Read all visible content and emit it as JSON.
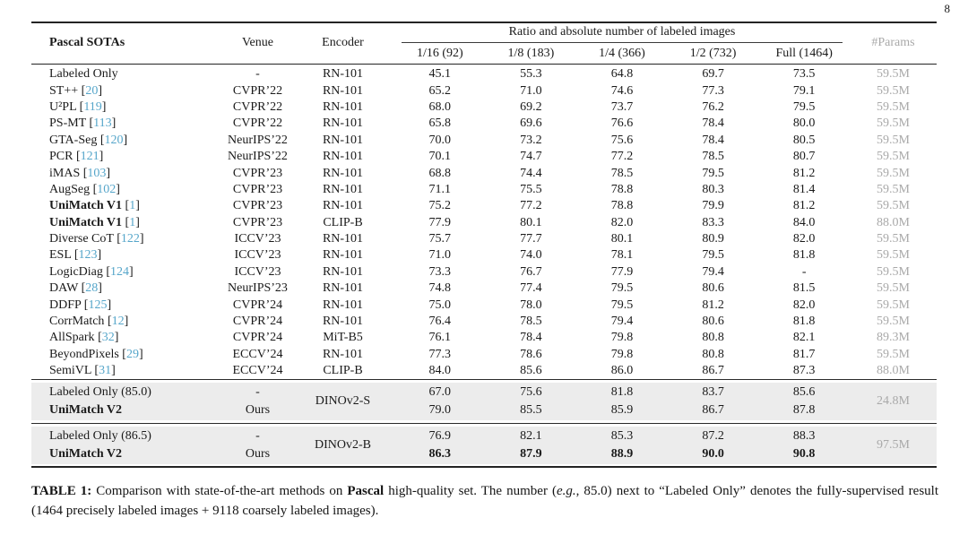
{
  "page": {
    "number": "8"
  },
  "colors": {
    "citation_blue": "#56a6ca",
    "params_gray": "#a9a9a9",
    "highlight_bg": "#ececec"
  },
  "table": {
    "header": {
      "col_method": "Pascal SOTAs",
      "col_venue": "Venue",
      "col_encoder": "Encoder",
      "group_title": "Ratio and absolute number of labeled images",
      "subcols": [
        "1/16 (92)",
        "1/8 (183)",
        "1/4 (366)",
        "1/2 (732)",
        "Full (1464)"
      ],
      "col_params": "#Params"
    },
    "rows": [
      {
        "method": "Labeled Only",
        "cite": "",
        "bold": false,
        "venue": "-",
        "encoder": "RN-101",
        "values": [
          "45.1",
          "55.3",
          "64.8",
          "69.7",
          "73.5"
        ],
        "params": "59.5M"
      },
      {
        "method": "ST++",
        "cite": "20",
        "bold": false,
        "venue": "CVPR’22",
        "encoder": "RN-101",
        "values": [
          "65.2",
          "71.0",
          "74.6",
          "77.3",
          "79.1"
        ],
        "params": "59.5M"
      },
      {
        "method": "U²PL",
        "cite": "119",
        "bold": false,
        "venue": "CVPR’22",
        "encoder": "RN-101",
        "values": [
          "68.0",
          "69.2",
          "73.7",
          "76.2",
          "79.5"
        ],
        "params": "59.5M"
      },
      {
        "method": "PS-MT",
        "cite": "113",
        "bold": false,
        "venue": "CVPR’22",
        "encoder": "RN-101",
        "values": [
          "65.8",
          "69.6",
          "76.6",
          "78.4",
          "80.0"
        ],
        "params": "59.5M"
      },
      {
        "method": "GTA-Seg",
        "cite": "120",
        "bold": false,
        "venue": "NeurIPS’22",
        "encoder": "RN-101",
        "values": [
          "70.0",
          "73.2",
          "75.6",
          "78.4",
          "80.5"
        ],
        "params": "59.5M"
      },
      {
        "method": "PCR",
        "cite": "121",
        "bold": false,
        "venue": "NeurIPS’22",
        "encoder": "RN-101",
        "values": [
          "70.1",
          "74.7",
          "77.2",
          "78.5",
          "80.7"
        ],
        "params": "59.5M"
      },
      {
        "method": "iMAS",
        "cite": "103",
        "bold": false,
        "venue": "CVPR’23",
        "encoder": "RN-101",
        "values": [
          "68.8",
          "74.4",
          "78.5",
          "79.5",
          "81.2"
        ],
        "params": "59.5M"
      },
      {
        "method": "AugSeg",
        "cite": "102",
        "bold": false,
        "venue": "CVPR’23",
        "encoder": "RN-101",
        "values": [
          "71.1",
          "75.5",
          "78.8",
          "80.3",
          "81.4"
        ],
        "params": "59.5M"
      },
      {
        "method": "UniMatch V1",
        "cite": "1",
        "bold": true,
        "venue": "CVPR’23",
        "encoder": "RN-101",
        "values": [
          "75.2",
          "77.2",
          "78.8",
          "79.9",
          "81.2"
        ],
        "params": "59.5M"
      },
      {
        "method": "UniMatch V1",
        "cite": "1",
        "bold": true,
        "venue": "CVPR’23",
        "encoder": "CLIP-B",
        "values": [
          "77.9",
          "80.1",
          "82.0",
          "83.3",
          "84.0"
        ],
        "params": "88.0M"
      },
      {
        "method": "Diverse CoT",
        "cite": "122",
        "bold": false,
        "venue": "ICCV’23",
        "encoder": "RN-101",
        "values": [
          "75.7",
          "77.7",
          "80.1",
          "80.9",
          "82.0"
        ],
        "params": "59.5M"
      },
      {
        "method": "ESL",
        "cite": "123",
        "bold": false,
        "venue": "ICCV’23",
        "encoder": "RN-101",
        "values": [
          "71.0",
          "74.0",
          "78.1",
          "79.5",
          "81.8"
        ],
        "params": "59.5M"
      },
      {
        "method": "LogicDiag",
        "cite": "124",
        "bold": false,
        "venue": "ICCV’23",
        "encoder": "RN-101",
        "values": [
          "73.3",
          "76.7",
          "77.9",
          "79.4",
          "-"
        ],
        "params": "59.5M"
      },
      {
        "method": "DAW",
        "cite": "28",
        "bold": false,
        "venue": "NeurIPS’23",
        "encoder": "RN-101",
        "values": [
          "74.8",
          "77.4",
          "79.5",
          "80.6",
          "81.5"
        ],
        "params": "59.5M"
      },
      {
        "method": "DDFP",
        "cite": "125",
        "bold": false,
        "venue": "CVPR’24",
        "encoder": "RN-101",
        "values": [
          "75.0",
          "78.0",
          "79.5",
          "81.2",
          "82.0"
        ],
        "params": "59.5M"
      },
      {
        "method": "CorrMatch",
        "cite": "12",
        "bold": false,
        "venue": "CVPR’24",
        "encoder": "RN-101",
        "values": [
          "76.4",
          "78.5",
          "79.4",
          "80.6",
          "81.8"
        ],
        "params": "59.5M"
      },
      {
        "method": "AllSpark",
        "cite": "32",
        "bold": false,
        "venue": "CVPR’24",
        "encoder": "MiT-B5",
        "values": [
          "76.1",
          "78.4",
          "79.8",
          "80.8",
          "82.1"
        ],
        "params": "89.3M"
      },
      {
        "method": "BeyondPixels",
        "cite": "29",
        "bold": false,
        "venue": "ECCV’24",
        "encoder": "RN-101",
        "values": [
          "77.3",
          "78.6",
          "79.8",
          "80.8",
          "81.7"
        ],
        "params": "59.5M"
      },
      {
        "method": "SemiVL",
        "cite": "31",
        "bold": false,
        "venue": "ECCV’24",
        "encoder": "CLIP-B",
        "values": [
          "84.0",
          "85.6",
          "86.0",
          "86.7",
          "87.3"
        ],
        "params": "88.0M"
      }
    ],
    "groups": [
      {
        "encoder": "DINOv2-S",
        "params": "24.8M",
        "rows": [
          {
            "method": "Labeled Only (85.0)",
            "cite": "",
            "bold": false,
            "venue": "-",
            "values": [
              "67.0",
              "75.6",
              "81.8",
              "83.7",
              "85.6"
            ],
            "bold_values": false
          },
          {
            "method": "UniMatch V2",
            "cite": "",
            "bold": true,
            "venue": "Ours",
            "values": [
              "79.0",
              "85.5",
              "85.9",
              "86.7",
              "87.8"
            ],
            "bold_values": false
          }
        ]
      },
      {
        "encoder": "DINOv2-B",
        "params": "97.5M",
        "rows": [
          {
            "method": "Labeled Only (86.5)",
            "cite": "",
            "bold": false,
            "venue": "-",
            "values": [
              "76.9",
              "82.1",
              "85.3",
              "87.2",
              "88.3"
            ],
            "bold_values": false
          },
          {
            "method": "UniMatch V2",
            "cite": "",
            "bold": true,
            "venue": "Ours",
            "values": [
              "86.3",
              "87.9",
              "88.9",
              "90.0",
              "90.8"
            ],
            "bold_values": true
          }
        ]
      }
    ]
  },
  "caption": {
    "segments": [
      {
        "text": "TABLE 1:",
        "style": "bold"
      },
      {
        "text": " Comparison with state-of-the-art methods on ",
        "style": ""
      },
      {
        "text": "Pascal",
        "style": "bold"
      },
      {
        "text": " high-quality set. The number (",
        "style": ""
      },
      {
        "text": "e.g.",
        "style": "italic"
      },
      {
        "text": ", 85.0) next to “Labeled Only” denotes the fully-supervised result (1464 precisely labeled images + 9118 coarsely labeled images).",
        "style": ""
      }
    ]
  }
}
